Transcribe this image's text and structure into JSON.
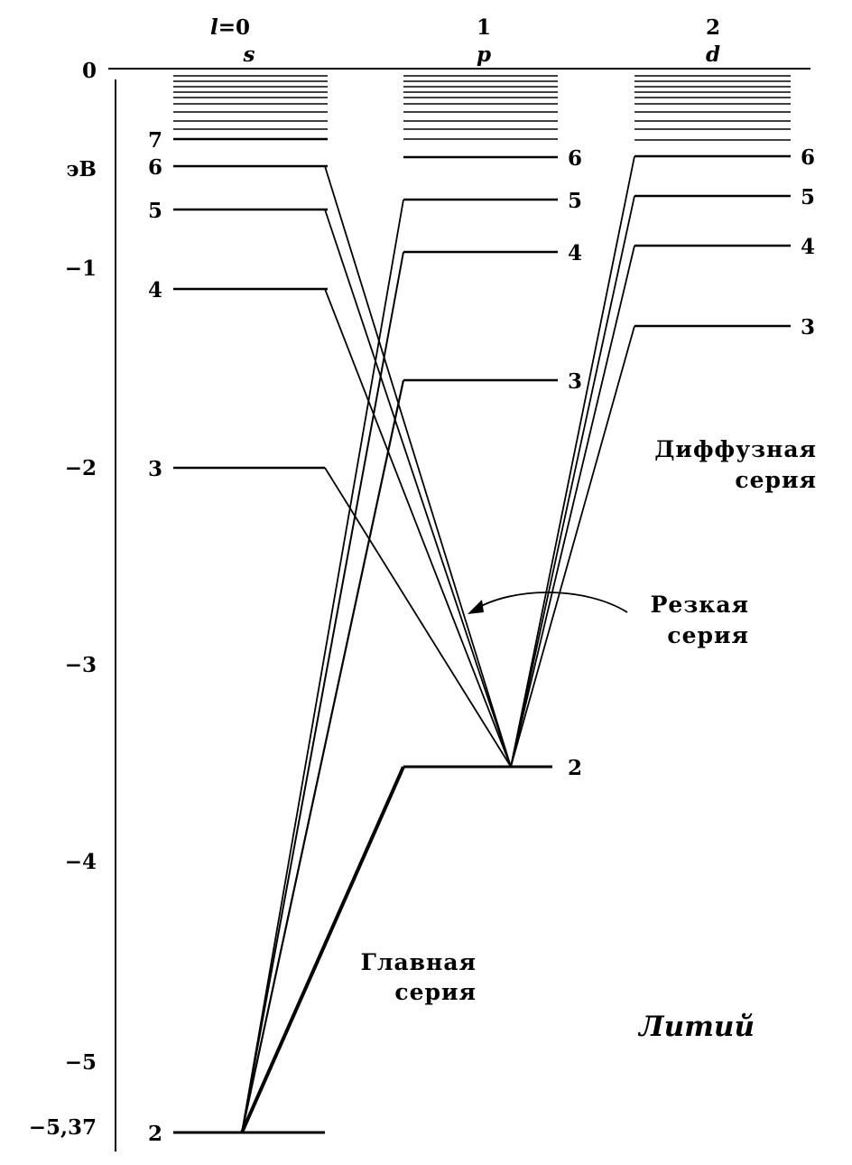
{
  "diagram": {
    "element": "Литий",
    "unit": "эВ",
    "axis_ticks": [
      "0",
      "−1",
      "−2",
      "−3",
      "−4",
      "−5",
      "−5,37"
    ],
    "columns": [
      {
        "top": "l=0",
        "letter": "s"
      },
      {
        "top": "1",
        "letter": "p"
      },
      {
        "top": "2",
        "letter": "d"
      }
    ],
    "s_levels": [
      {
        "n": "2",
        "energy": -5.37
      },
      {
        "n": "3",
        "energy": -2.0
      },
      {
        "n": "4",
        "energy": -1.1
      },
      {
        "n": "5",
        "energy": -0.7
      },
      {
        "n": "6",
        "energy": -0.48
      },
      {
        "n": "7",
        "energy": -0.35
      }
    ],
    "p_levels": [
      {
        "n": "2",
        "energy": -3.5
      },
      {
        "n": "3",
        "energy": -1.6
      },
      {
        "n": "4",
        "energy": -0.9
      },
      {
        "n": "5",
        "energy": -0.65
      },
      {
        "n": "6",
        "energy": -0.43
      }
    ],
    "d_levels": [
      {
        "n": "3",
        "energy": -1.3
      },
      {
        "n": "4",
        "energy": -0.9
      },
      {
        "n": "5",
        "energy": -0.64
      },
      {
        "n": "6",
        "energy": -0.43
      }
    ],
    "series": {
      "principal": [
        "Главная",
        "серия"
      ],
      "sharp": [
        "Резкая",
        "серия"
      ],
      "diffuse": [
        "Диффузная",
        "серия"
      ]
    }
  }
}
